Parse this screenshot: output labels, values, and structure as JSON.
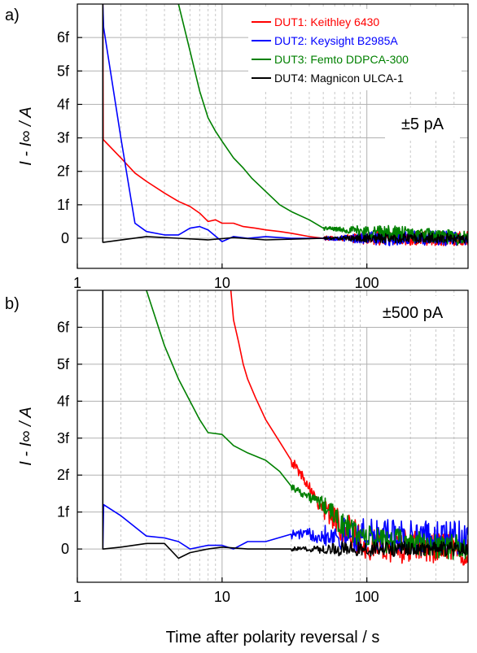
{
  "chart_data": [
    {
      "panel_label": "a)",
      "type": "line",
      "annotation": "±5 pA",
      "x_scale": "log",
      "xlim": [
        1,
        500
      ],
      "ylim": [
        -0.9,
        7
      ],
      "x_ticks": [
        {
          "value": 1,
          "label": "1"
        },
        {
          "value": 10,
          "label": "10"
        },
        {
          "value": 100,
          "label": "100"
        }
      ],
      "y_ticks": [
        {
          "value": 0,
          "label": "0"
        },
        {
          "value": 1,
          "label": "1f"
        },
        {
          "value": 2,
          "label": "2f"
        },
        {
          "value": 3,
          "label": "3f"
        },
        {
          "value": 4,
          "label": "4f"
        },
        {
          "value": 5,
          "label": "5f"
        },
        {
          "value": 6,
          "label": "6f"
        }
      ],
      "ylabel": "I - I∞ / A",
      "grid": true,
      "legend_position": "top-right",
      "noise_from_x": 50,
      "series": [
        {
          "name": "DUT1: Keithley 6430",
          "color": "#ff0000",
          "noise": 0.22,
          "x": [
            1.5,
            1.51,
            2,
            2.5,
            3,
            4,
            5,
            6,
            7,
            8,
            9,
            10,
            12,
            14,
            17,
            20,
            25,
            30,
            40,
            50,
            500
          ],
          "y": [
            7,
            2.95,
            2.4,
            1.95,
            1.7,
            1.35,
            1.1,
            0.95,
            0.75,
            0.5,
            0.55,
            0.45,
            0.45,
            0.35,
            0.3,
            0.25,
            0.2,
            0.15,
            0.05,
            0,
            0
          ]
        },
        {
          "name": "DUT2: Keysight B2985A",
          "color": "#0000ff",
          "noise": 0.22,
          "x": [
            1.5,
            1.52,
            2,
            2.5,
            3,
            4,
            5,
            6,
            7,
            8,
            10,
            12,
            15,
            20,
            30,
            50,
            500
          ],
          "y": [
            7,
            6.3,
            3.0,
            0.45,
            0.2,
            0.1,
            0.1,
            0.3,
            0.35,
            0.25,
            -0.1,
            0.05,
            0.0,
            0.05,
            0.0,
            0,
            0
          ]
        },
        {
          "name": "DUT3: Femto DDPCA-300",
          "color": "#008000",
          "noise": 0.22,
          "x": [
            5,
            6,
            7,
            8,
            9,
            10,
            12,
            14,
            16,
            20,
            25,
            30,
            40,
            50,
            500
          ],
          "y": [
            7,
            5.6,
            4.4,
            3.6,
            3.2,
            2.9,
            2.4,
            2.1,
            1.8,
            1.4,
            1.0,
            0.8,
            0.55,
            0.3,
            0
          ]
        },
        {
          "name": "DUT4: Magnicon ULCA-1",
          "color": "#000000",
          "noise": 0.15,
          "x": [
            1.5,
            1.5,
            1.52,
            3,
            5,
            8,
            12,
            20,
            50,
            500
          ],
          "y": [
            7,
            -0.12,
            -0.12,
            0.05,
            0.0,
            -0.05,
            0.02,
            -0.05,
            0,
            0
          ]
        }
      ]
    },
    {
      "panel_label": "b)",
      "type": "line",
      "annotation": "±500 pA",
      "x_scale": "log",
      "xlim": [
        1,
        500
      ],
      "ylim": [
        -0.9,
        7
      ],
      "x_ticks": [
        {
          "value": 1,
          "label": "1"
        },
        {
          "value": 10,
          "label": "10"
        },
        {
          "value": 100,
          "label": "100"
        }
      ],
      "y_ticks": [
        {
          "value": 0,
          "label": "0"
        },
        {
          "value": 1,
          "label": "1f"
        },
        {
          "value": 2,
          "label": "2f"
        },
        {
          "value": 3,
          "label": "3f"
        },
        {
          "value": 4,
          "label": "4f"
        },
        {
          "value": 5,
          "label": "5f"
        },
        {
          "value": 6,
          "label": "6f"
        }
      ],
      "xlabel": "Time after polarity reversal / s",
      "ylabel": "I - I∞ / A",
      "grid": true,
      "noise_from_x": 30,
      "series": [
        {
          "name": "DUT1: Keithley 6430",
          "color": "#ff0000",
          "noise": 0.45,
          "x": [
            11.5,
            12,
            13,
            14,
            15,
            17,
            20,
            25,
            30,
            40,
            50,
            60,
            80,
            100,
            500
          ],
          "y": [
            7,
            6.2,
            5.6,
            5.0,
            4.6,
            4.1,
            3.5,
            2.9,
            2.4,
            1.7,
            1.1,
            0.8,
            0.4,
            0.1,
            0
          ]
        },
        {
          "name": "DUT2: Keysight B2985A",
          "color": "#0000ff",
          "noise": 0.45,
          "x": [
            1.5,
            1.52,
            2,
            3,
            4,
            5,
            6,
            8,
            10,
            12,
            15,
            20,
            30,
            50,
            500
          ],
          "y": [
            0,
            1.2,
            0.9,
            0.35,
            0.3,
            0.2,
            0.0,
            0.1,
            0.1,
            0.0,
            0.2,
            0.2,
            0.4,
            0.4,
            0.3
          ]
        },
        {
          "name": "DUT3: Femto DDPCA-300",
          "color": "#008000",
          "noise": 0.35,
          "x": [
            3,
            4,
            5,
            6,
            7,
            8,
            10,
            12,
            15,
            20,
            25,
            30,
            40,
            50,
            70,
            100,
            500
          ],
          "y": [
            7,
            5.5,
            4.6,
            4.0,
            3.5,
            3.15,
            3.1,
            2.8,
            2.6,
            2.4,
            2.1,
            1.7,
            1.4,
            1.2,
            0.6,
            0.3,
            0
          ]
        },
        {
          "name": "DUT4: Magnicon ULCA-1",
          "color": "#000000",
          "noise": 0.2,
          "x": [
            1.5,
            1.5,
            1.52,
            2,
            3,
            4,
            5,
            6,
            8,
            10,
            15,
            20,
            30,
            50,
            500
          ],
          "y": [
            7,
            0,
            0,
            0.05,
            0.15,
            0.15,
            -0.25,
            -0.1,
            0.0,
            0.05,
            0.0,
            0.0,
            0.0,
            0,
            0
          ]
        }
      ]
    }
  ]
}
